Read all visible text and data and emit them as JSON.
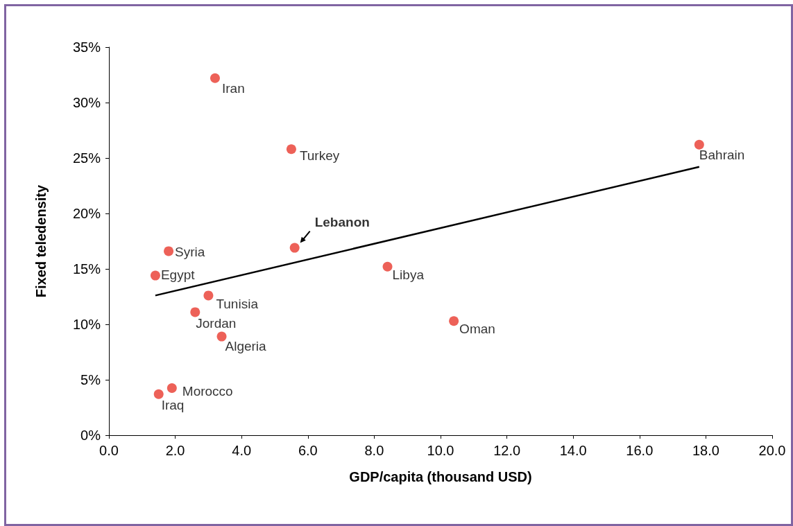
{
  "chart_data": {
    "type": "scatter",
    "xlabel": "GDP/capita (thousand USD)",
    "ylabel": "Fixed teledensity",
    "xlim": [
      0,
      20
    ],
    "xticks": [
      {
        "value": 0,
        "label": "0.0"
      },
      {
        "value": 2,
        "label": "2.0"
      },
      {
        "value": 4,
        "label": "4.0"
      },
      {
        "value": 6,
        "label": "6.0"
      },
      {
        "value": 8,
        "label": "8.0"
      },
      {
        "value": 10,
        "label": "10.0"
      },
      {
        "value": 12,
        "label": "12.0"
      },
      {
        "value": 14,
        "label": "14.0"
      },
      {
        "value": 16,
        "label": "16.0"
      },
      {
        "value": 18,
        "label": "18.0"
      },
      {
        "value": 20,
        "label": "20.0"
      }
    ],
    "ylim": [
      0,
      35
    ],
    "yticks": [
      {
        "value": 0,
        "label": "0%"
      },
      {
        "value": 5,
        "label": "5%"
      },
      {
        "value": 10,
        "label": "10%"
      },
      {
        "value": 15,
        "label": "15%"
      },
      {
        "value": 20,
        "label": "20%"
      },
      {
        "value": 25,
        "label": "25%"
      },
      {
        "value": 30,
        "label": "30%"
      },
      {
        "value": 35,
        "label": "35%"
      }
    ],
    "grid": false,
    "marker": "circle",
    "series": [
      {
        "color": "#e8392e",
        "x": [
          3.2,
          5.5,
          17.8,
          5.6,
          1.8,
          1.4,
          8.4,
          3.0,
          2.6,
          10.4,
          3.4,
          1.9,
          1.5
        ],
        "values": [
          32.2,
          25.8,
          26.2,
          16.9,
          16.6,
          14.4,
          15.2,
          12.6,
          11.1,
          10.3,
          8.9,
          4.25,
          3.7
        ]
      },
      {
        "type": "line",
        "color": "#000000",
        "line_style": "solid",
        "marker": "none",
        "x": [
          1.4,
          17.8
        ],
        "values": [
          12.6,
          24.2
        ]
      }
    ],
    "annotations": [
      {
        "text": "Iran",
        "x": 3.2,
        "y": 32.2
      },
      {
        "text": "Turkey",
        "x": 5.5,
        "y": 25.8
      },
      {
        "text": "Bahrain",
        "x": 17.8,
        "y": 26.2
      },
      {
        "text": "Lebanon",
        "x": 5.6,
        "y": 16.9
      },
      {
        "text": "Syria",
        "x": 1.8,
        "y": 16.6
      },
      {
        "text": "Egypt",
        "x": 1.4,
        "y": 14.4
      },
      {
        "text": "Libya",
        "x": 8.4,
        "y": 15.2
      },
      {
        "text": "Tunisia",
        "x": 3.0,
        "y": 12.6
      },
      {
        "text": "Jordan",
        "x": 2.6,
        "y": 11.1
      },
      {
        "text": "Oman",
        "x": 10.4,
        "y": 10.3
      },
      {
        "text": "Algeria",
        "x": 3.4,
        "y": 8.9
      },
      {
        "text": "Morocco",
        "x": 1.9,
        "y": 4.25
      },
      {
        "text": "Iraq",
        "x": 1.5,
        "y": 3.7
      }
    ]
  }
}
